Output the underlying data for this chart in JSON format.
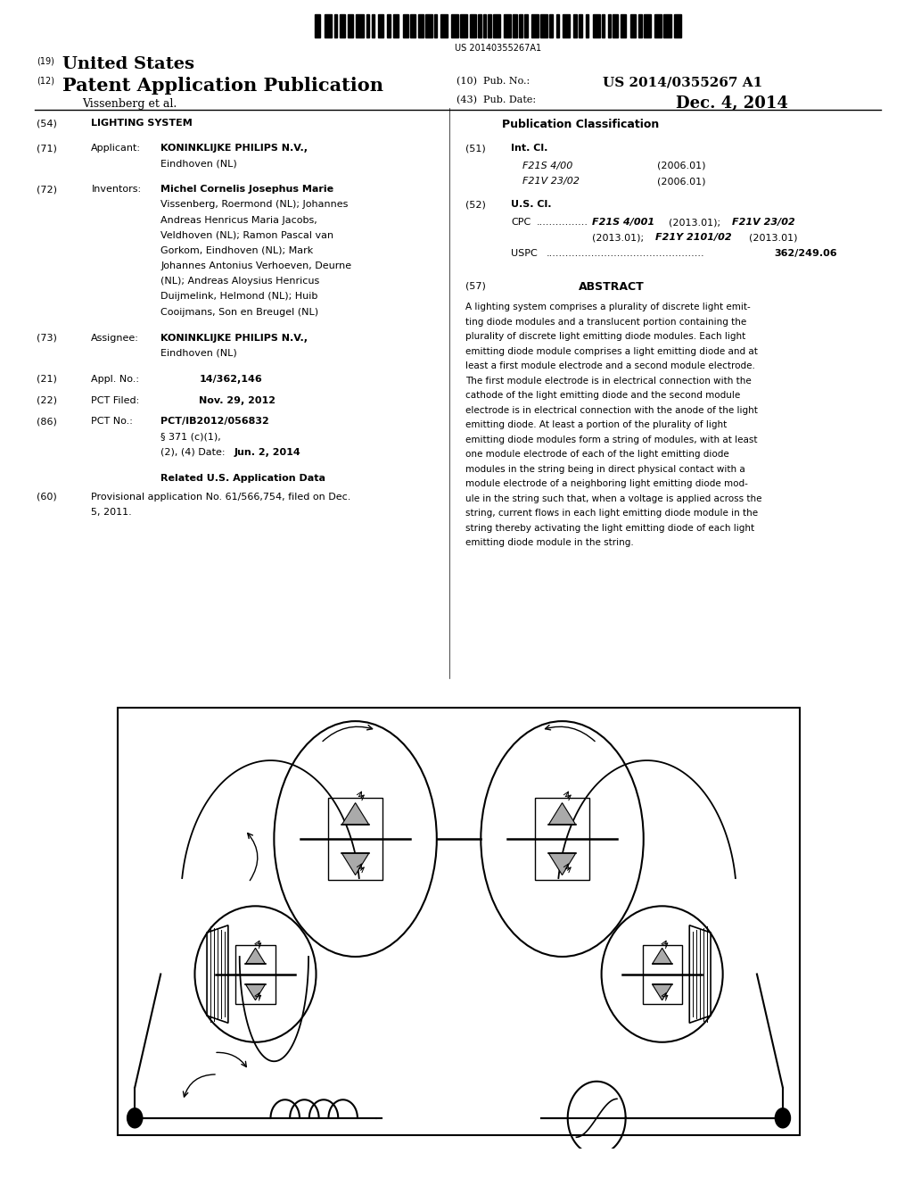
{
  "barcode_text": "US 20140355267A1",
  "title_19_text": "United States",
  "title_12_text": "Patent Application Publication",
  "author_line": "Vissenberg et al.",
  "pub_no_label": "(10)  Pub. No.:",
  "pub_no": "US 2014/0355267 A1",
  "pub_date_label": "(43)  Pub. Date:",
  "pub_date": "Dec. 4, 2014",
  "section54_text": "LIGHTING SYSTEM",
  "pub_class_header": "Publication Classification",
  "section72_inventors": [
    "Vissenberg, Roermond (NL); Johannes",
    "Andreas Henricus Maria Jacobs,",
    "Veldhoven (NL); Ramon Pascal van",
    "Gorkom, Eindhoven (NL); Mark",
    "Johannes Antonius Verhoeven, Deurne",
    "(NL); Andreas Aloysius Henricus",
    "Duijmelink, Helmond (NL); Huib",
    "Cooijmans, Son en Breugel (NL)"
  ],
  "section86_sub1": "§ 371 (c)(1),",
  "section86_sub2": "(2), (4) Date:",
  "section86_sub2val": "Jun. 2, 2014",
  "related_us_header": "Related U.S. Application Data",
  "section60_text1": "Provisional application No. 61/566,754, filed on Dec.",
  "section60_text2": "5, 2011.",
  "section57_text": "ABSTRACT",
  "abstract_lines": [
    "A lighting system comprises a plurality of discrete light emit-",
    "ting diode modules and a translucent portion containing the",
    "plurality of discrete light emitting diode modules. Each light",
    "emitting diode module comprises a light emitting diode and at",
    "least a first module electrode and a second module electrode.",
    "The first module electrode is in electrical connection with the",
    "cathode of the light emitting diode and the second module",
    "electrode is in electrical connection with the anode of the light",
    "emitting diode. At least a portion of the plurality of light",
    "emitting diode modules form a string of modules, with at least",
    "one module electrode of each of the light emitting diode",
    "modules in the string being in direct physical contact with a",
    "module electrode of a neighboring light emitting diode mod-",
    "ule in the string such that, when a voltage is applied across the",
    "string, current flows in each light emitting diode module in the",
    "string thereby activating the light emitting diode of each light",
    "emitting diode module in the string."
  ],
  "bg_color": "#ffffff",
  "text_color": "#000000"
}
